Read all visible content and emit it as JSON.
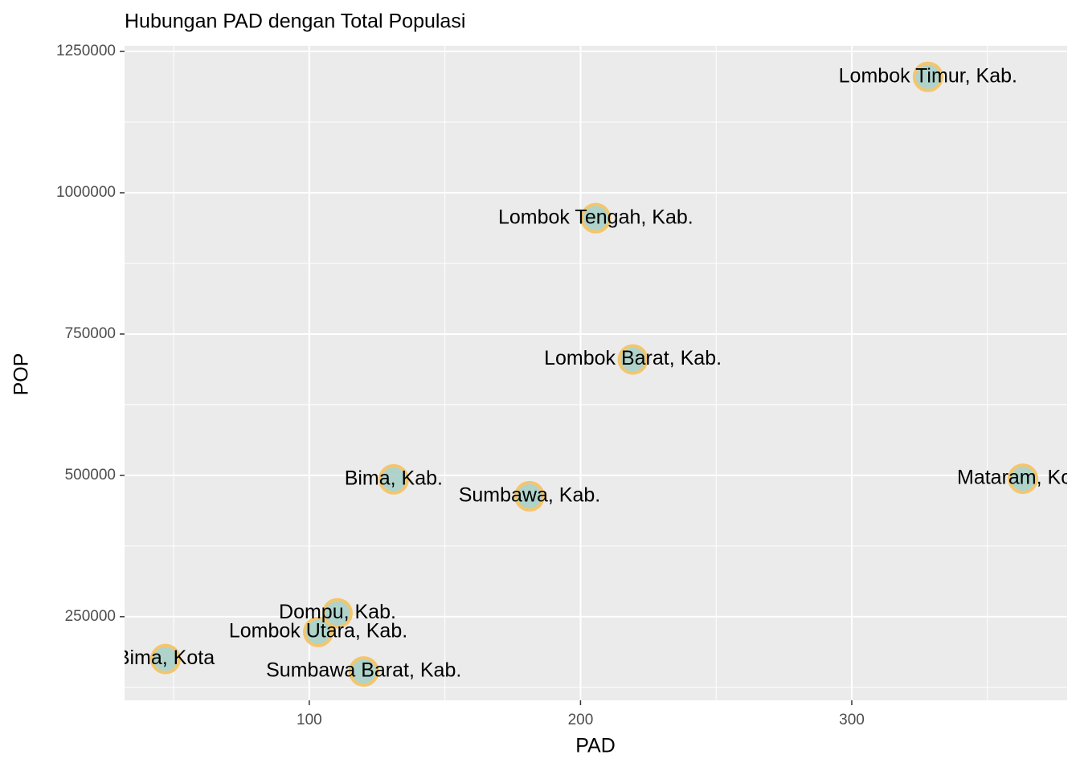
{
  "chart_data": {
    "type": "scatter",
    "title": "Hubungan PAD dengan Total Populasi",
    "x_label": "PAD",
    "y_label": "POP",
    "labels": [
      "Lombok Timur, Kab.",
      "Lombok Tengah, Kab.",
      "Lombok Barat, Kab.",
      "Mataram, Kota",
      "Bima, Kab.",
      "Sumbawa, Kab.",
      "Dompu, Kab.",
      "Lombok Utara, Kab.",
      "Bima, Kota",
      "Sumbawa Barat, Kab."
    ],
    "x": [
      328.1,
      205.6,
      219.3,
      363.1,
      131.1,
      181.2,
      110.4,
      103.3,
      47.0,
      120.1
    ],
    "values": [
      1205000,
      955000,
      705000,
      494000,
      493000,
      463000,
      256000,
      223000,
      175000,
      153000
    ],
    "color": "#a9d0c6",
    "edge_color": "#f3c66e",
    "xlim": [
      31.9,
      379.4
    ],
    "ylim": [
      102000,
      1260000
    ],
    "xticks": [
      100,
      200,
      300
    ],
    "yticks": [
      250000,
      500000,
      750000,
      1000000,
      1250000
    ],
    "x_minor_grid": [
      50,
      150,
      250,
      350
    ],
    "y_minor_grid": [
      125000,
      375000,
      625000,
      875000,
      1125000
    ],
    "grid": true
  }
}
